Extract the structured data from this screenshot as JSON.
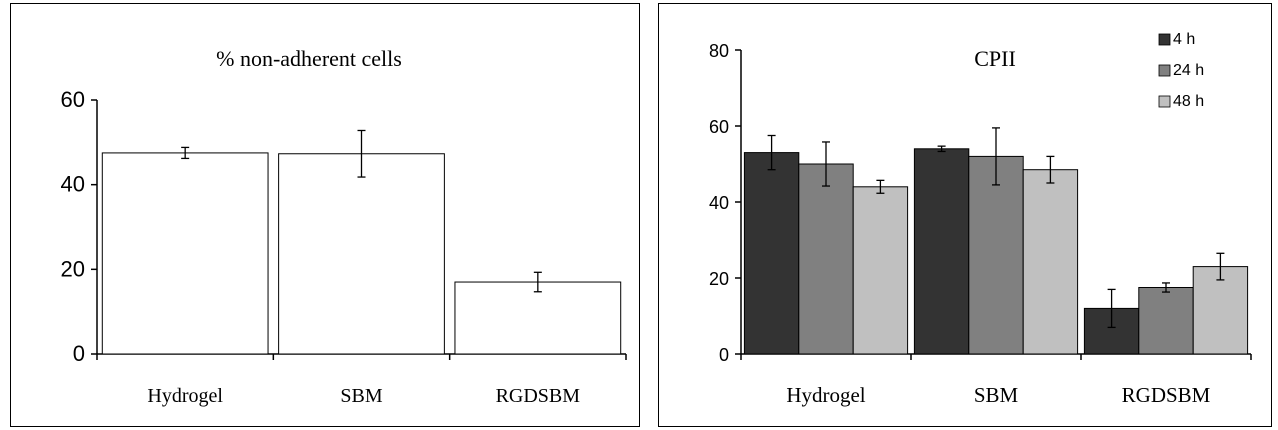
{
  "charts": [
    {
      "chart_data": {
        "type": "bar",
        "title": "% non-adherent cells",
        "categories": [
          "Hydrogel",
          "SBM",
          "RGDSBM"
        ],
        "values": [
          47.5,
          47.3,
          17.0
        ],
        "errors": [
          1.3,
          5.5,
          2.3
        ],
        "ylim": [
          0,
          60
        ],
        "yticks": [
          "0",
          "20",
          "40",
          "60"
        ],
        "grid": false,
        "bar_color": "#ffffff"
      }
    },
    {
      "chart_data": {
        "type": "bar",
        "title": "CPII",
        "categories": [
          "Hydrogel",
          "SBM",
          "RGDSBM"
        ],
        "series": [
          {
            "name": "4 h",
            "values": [
              53,
              54,
              12
            ],
            "errors": [
              4.5,
              0.7,
              5
            ],
            "color": "#333333"
          },
          {
            "name": "24 h",
            "values": [
              50,
              52,
              17.5
            ],
            "errors": [
              5.8,
              7.5,
              1.2
            ],
            "color": "#808080"
          },
          {
            "name": "48 h",
            "values": [
              44,
              48.5,
              23
            ],
            "errors": [
              1.7,
              3.5,
              3.5
            ],
            "color": "#c0c0c0"
          }
        ],
        "ylim": [
          0,
          80
        ],
        "yticks": [
          "0",
          "20",
          "40",
          "60",
          "80"
        ],
        "grid": false,
        "legend": "top-right"
      }
    }
  ]
}
